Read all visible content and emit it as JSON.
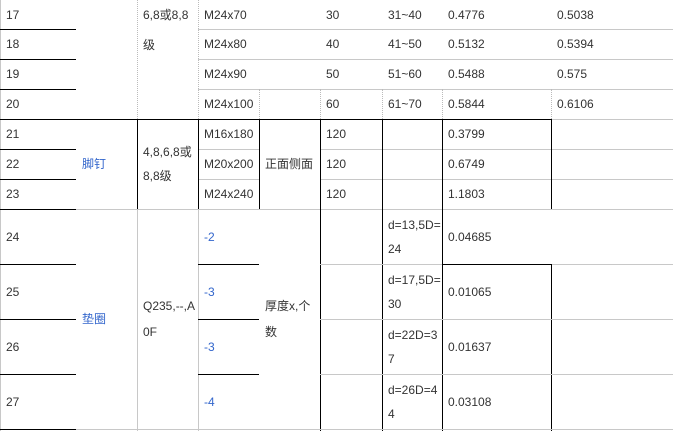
{
  "rows": [
    {
      "no": "17",
      "spec": "M24x70",
      "c5": "30",
      "c6": "31~40",
      "c7": "0.4776",
      "c8": "0.5038"
    },
    {
      "no": "18",
      "spec": "M24x80",
      "c5": "40",
      "c6": "41~50",
      "c7": "0.5132",
      "c8": "0.5394"
    },
    {
      "no": "19",
      "spec": "M24x90",
      "c5": "50",
      "c6": "51~60",
      "c7": "0.5488",
      "c8": "0.575"
    },
    {
      "no": "20",
      "spec": "M24x100",
      "c5": "60",
      "c6": "61~70",
      "c7": "0.5844",
      "c8": "0.6106"
    },
    {
      "no": "21",
      "spec": "M16x180",
      "c5": "120",
      "c7": "0.3799"
    },
    {
      "no": "22",
      "spec": "M20x200",
      "c5": "120",
      "c7": "0.6749"
    },
    {
      "no": "23",
      "spec": "M24x240",
      "c5": "120",
      "c7": "1.1803"
    },
    {
      "no": "24",
      "spec": "-2",
      "c6": "d=13,5D=24",
      "c7": "0.04685"
    },
    {
      "no": "25",
      "spec": "-3",
      "c6": "d=17,5D=30",
      "c7": "0.01065"
    },
    {
      "no": "26",
      "spec": "-3",
      "c6": "d=22D=37",
      "c7": "0.01637"
    },
    {
      "no": "27",
      "spec": "-4",
      "c6": "d=26D=44",
      "c7": "0.03108"
    }
  ],
  "groups": {
    "bolt_grade": "6,8或8,8级",
    "foot_nail": {
      "name": "脚钉",
      "grade": "4,8,6,8或8,8级",
      "surface": "正面侧面"
    },
    "washer": {
      "name": "垫圈",
      "material": "Q235,--,A0F",
      "unit": "厚度x,个数"
    }
  },
  "colors": {
    "link": "#3366cc",
    "text": "#333333"
  }
}
